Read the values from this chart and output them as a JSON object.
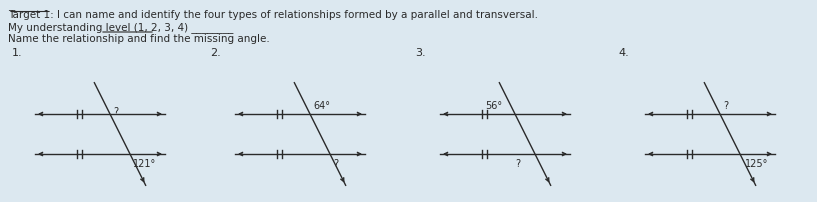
{
  "title_line1": "Target 1: I can name and identify the four types of relationships formed by a parallel and transversal.",
  "title_line2": "My understanding level (1, 2, 3, 4) ________",
  "title_line3": "Name the relationship and find the missing angle.",
  "background_color": "#dce8f0",
  "text_color": "#2a2a2a",
  "diagrams": [
    {
      "number": "1.",
      "label_top": "?",
      "label_bottom": "121°",
      "label_top_side": "right",
      "label_bottom_side": "right",
      "transversal_leans": "right"
    },
    {
      "number": "2.",
      "label_top": "64°",
      "label_bottom": "?",
      "label_top_side": "right",
      "label_bottom_side": "right",
      "transversal_leans": "right"
    },
    {
      "number": "3.",
      "label_top": "56°",
      "label_bottom": "?",
      "label_top_side": "left",
      "label_bottom_side": "left",
      "transversal_leans": "right"
    },
    {
      "number": "4.",
      "label_top": "?",
      "label_bottom": "125°",
      "label_top_side": "right",
      "label_bottom_side": "right",
      "transversal_leans": "right"
    }
  ]
}
